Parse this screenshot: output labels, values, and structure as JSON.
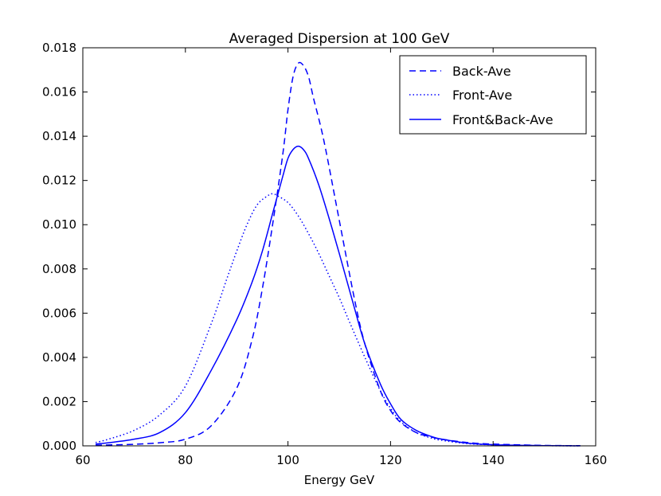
{
  "chart_data": {
    "type": "line",
    "title": "Averaged Dispersion at 100 GeV",
    "xlabel": "Energy GeV",
    "ylabel": "",
    "xlim": [
      60,
      160
    ],
    "ylim": [
      0,
      0.018
    ],
    "x_ticks": [
      60,
      80,
      100,
      120,
      140,
      160
    ],
    "x_tick_labels": [
      "60",
      "80",
      "100",
      "120",
      "140",
      "160"
    ],
    "y_ticks": [
      0,
      0.002,
      0.004,
      0.006,
      0.008,
      0.01,
      0.012,
      0.014,
      0.016,
      0.018
    ],
    "y_tick_labels": [
      "0.000",
      "0.002",
      "0.004",
      "0.006",
      "0.008",
      "0.010",
      "0.012",
      "0.014",
      "0.016",
      "0.018"
    ],
    "grid": false,
    "legend_position": "top-right",
    "color": "#0000ff",
    "series": [
      {
        "name": "Back-Ave",
        "style": "dashed",
        "x": [
          62.5,
          65,
          70,
          75,
          80,
          85,
          90,
          93,
          95,
          97,
          99,
          100,
          101,
          102,
          103,
          104,
          105,
          107,
          110,
          113,
          115,
          118,
          120,
          122,
          125,
          128,
          130,
          135,
          140,
          150,
          157
        ],
        "y": [
          3e-05,
          4e-05,
          7e-05,
          0.00014,
          0.0003,
          0.0009,
          0.0026,
          0.0048,
          0.0071,
          0.01,
          0.0132,
          0.0152,
          0.0167,
          0.0173,
          0.0172,
          0.0167,
          0.0157,
          0.0138,
          0.0102,
          0.0066,
          0.0046,
          0.0025,
          0.0016,
          0.00105,
          0.0006,
          0.0004,
          0.0003,
          0.00015,
          8e-05,
          2e-05,
          1e-05
        ]
      },
      {
        "name": "Front-Ave",
        "style": "dotted",
        "x": [
          62.5,
          65,
          70,
          75,
          80,
          85,
          88,
          90,
          92,
          94,
          96,
          97,
          98,
          100,
          102,
          104,
          106,
          108,
          110,
          112,
          115,
          118,
          120,
          122,
          125,
          128,
          130,
          135,
          140,
          150,
          157
        ],
        "y": [
          0.00015,
          0.0003,
          0.0007,
          0.0014,
          0.0027,
          0.0055,
          0.0075,
          0.0088,
          0.01,
          0.0109,
          0.0113,
          0.0114,
          0.0113,
          0.011,
          0.0104,
          0.0096,
          0.0087,
          0.0077,
          0.0067,
          0.0056,
          0.004,
          0.0025,
          0.0017,
          0.0011,
          0.0006,
          0.00035,
          0.00025,
          0.0001,
          5e-05,
          1e-05,
          0.0
        ]
      },
      {
        "name": "Front&Back-Ave",
        "style": "solid",
        "x": [
          62.5,
          65,
          70,
          75,
          80,
          85,
          90,
          93,
          95,
          97,
          99,
          100,
          101,
          102,
          103,
          104,
          106,
          108,
          110,
          113,
          115,
          118,
          120,
          122,
          125,
          128,
          130,
          135,
          140,
          150,
          157
        ],
        "y": [
          8e-05,
          0.00014,
          0.0003,
          0.0006,
          0.0015,
          0.0034,
          0.0057,
          0.0074,
          0.0088,
          0.0105,
          0.0122,
          0.013,
          0.0134,
          0.01355,
          0.0134,
          0.013,
          0.0118,
          0.0103,
          0.0087,
          0.0062,
          0.0046,
          0.0028,
          0.0019,
          0.0012,
          0.0007,
          0.00042,
          0.0003,
          0.00012,
          5e-05,
          1e-05,
          0.0
        ]
      }
    ]
  }
}
